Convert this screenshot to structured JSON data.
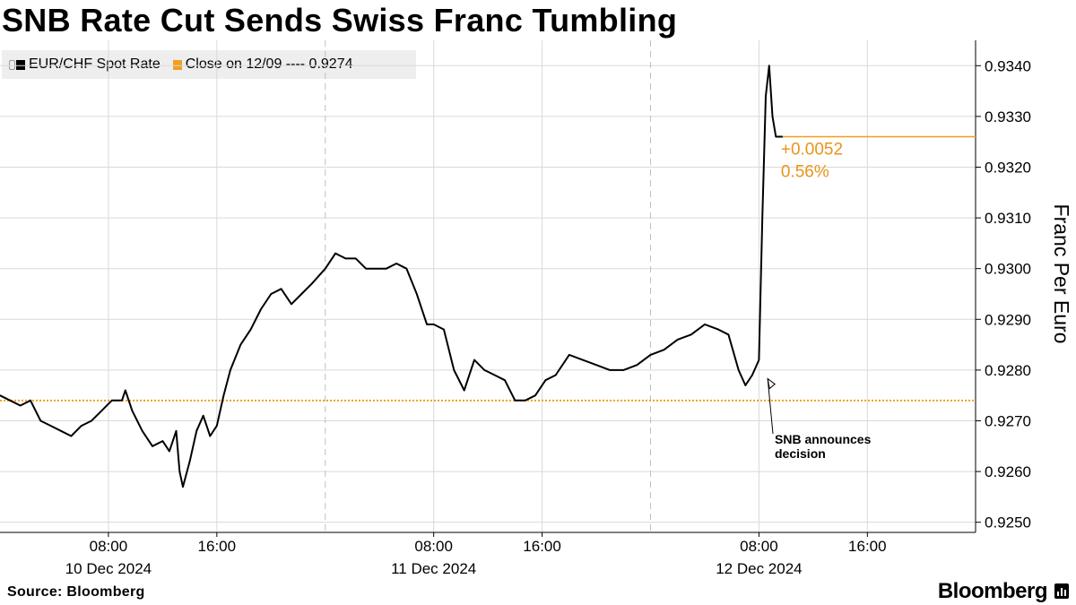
{
  "title": "SNB Rate Cut Sends Swiss Franc Tumbling",
  "legend": {
    "spot_label": "EUR/CHF Spot Rate",
    "close_label": "Close on 12/09 ---- 0.9274"
  },
  "footer": {
    "source": "Source: Bloomberg",
    "brand": "Bloomberg"
  },
  "colors": {
    "line": "#000000",
    "close": "#f0a01e",
    "grid": "#d9d9d9",
    "annotation": "#e8941a"
  },
  "chart_data": {
    "type": "line",
    "title": "SNB Rate Cut Sends Swiss Franc Tumbling",
    "ylabel": "Franc Per Euro",
    "ylim": [
      0.9248,
      0.9345
    ],
    "yticks": [
      "0.9250",
      "0.9260",
      "0.9270",
      "0.9280",
      "0.9290",
      "0.9300",
      "0.9310",
      "0.9320",
      "0.9330",
      "0.9340"
    ],
    "y_axis_position": "right",
    "grid": true,
    "legend_position": "top-left",
    "xlim": [
      "2024-12-10T00:00",
      "2024-12-12T23:59"
    ],
    "xticks": [
      {
        "x": "2024-12-10T08:00",
        "time": "08:00",
        "date": "10 Dec 2024"
      },
      {
        "x": "2024-12-10T16:00",
        "time": "16:00",
        "date": ""
      },
      {
        "x": "2024-12-11T08:00",
        "time": "08:00",
        "date": "11 Dec 2024"
      },
      {
        "x": "2024-12-11T16:00",
        "time": "16:00",
        "date": ""
      },
      {
        "x": "2024-12-12T08:00",
        "time": "08:00",
        "date": "12 Dec 2024"
      },
      {
        "x": "2024-12-12T16:00",
        "time": "16:00",
        "date": ""
      }
    ],
    "day_dividers": [
      "2024-12-11T00:00",
      "2024-12-12T00:00"
    ],
    "series": [
      {
        "name": "EUR/CHF Spot Rate",
        "x": [
          "2024-12-10T00:00",
          "2024-12-10T00:45",
          "2024-12-10T01:30",
          "2024-12-10T02:15",
          "2024-12-10T03:00",
          "2024-12-10T03:45",
          "2024-12-10T04:30",
          "2024-12-10T05:15",
          "2024-12-10T06:00",
          "2024-12-10T06:45",
          "2024-12-10T07:30",
          "2024-12-10T08:15",
          "2024-12-10T09:00",
          "2024-12-10T09:15",
          "2024-12-10T09:45",
          "2024-12-10T10:30",
          "2024-12-10T11:15",
          "2024-12-10T12:00",
          "2024-12-10T12:30",
          "2024-12-10T13:00",
          "2024-12-10T13:15",
          "2024-12-10T13:30",
          "2024-12-10T14:00",
          "2024-12-10T14:30",
          "2024-12-10T15:00",
          "2024-12-10T15:30",
          "2024-12-10T16:00",
          "2024-12-10T16:30",
          "2024-12-10T17:00",
          "2024-12-10T17:45",
          "2024-12-10T18:30",
          "2024-12-10T19:15",
          "2024-12-10T20:00",
          "2024-12-10T20:45",
          "2024-12-10T21:30",
          "2024-12-10T22:15",
          "2024-12-10T23:00",
          "2024-12-11T00:00",
          "2024-12-11T00:45",
          "2024-12-11T01:30",
          "2024-12-11T02:15",
          "2024-12-11T03:00",
          "2024-12-11T03:45",
          "2024-12-11T04:30",
          "2024-12-11T05:15",
          "2024-12-11T06:00",
          "2024-12-11T06:45",
          "2024-12-11T07:30",
          "2024-12-11T08:00",
          "2024-12-11T08:45",
          "2024-12-11T09:30",
          "2024-12-11T10:15",
          "2024-12-11T11:00",
          "2024-12-11T11:45",
          "2024-12-11T12:30",
          "2024-12-11T13:15",
          "2024-12-11T14:00",
          "2024-12-11T14:45",
          "2024-12-11T15:30",
          "2024-12-11T16:15",
          "2024-12-11T17:00",
          "2024-12-11T18:00",
          "2024-12-11T19:00",
          "2024-12-11T20:00",
          "2024-12-11T21:00",
          "2024-12-11T22:00",
          "2024-12-11T23:00",
          "2024-12-12T00:00",
          "2024-12-12T01:00",
          "2024-12-12T02:00",
          "2024-12-12T03:00",
          "2024-12-12T04:00",
          "2024-12-12T05:00",
          "2024-12-12T05:45",
          "2024-12-12T06:30",
          "2024-12-12T07:00",
          "2024-12-12T07:30",
          "2024-12-12T08:00",
          "2024-12-12T08:15",
          "2024-12-12T08:30",
          "2024-12-12T08:45",
          "2024-12-12T09:00",
          "2024-12-12T09:15",
          "2024-12-12T09:30",
          "2024-12-12T09:45"
        ],
        "values": [
          0.9275,
          0.9274,
          0.9273,
          0.9274,
          0.927,
          0.9269,
          0.9268,
          0.9267,
          0.9269,
          0.927,
          0.9272,
          0.9274,
          0.9274,
          0.9276,
          0.9272,
          0.9268,
          0.9265,
          0.9266,
          0.9264,
          0.9268,
          0.926,
          0.9257,
          0.9262,
          0.9268,
          0.9271,
          0.9267,
          0.9269,
          0.9275,
          0.928,
          0.9285,
          0.9288,
          0.9292,
          0.9295,
          0.9296,
          0.9293,
          0.9295,
          0.9297,
          0.93,
          0.9303,
          0.9302,
          0.9302,
          0.93,
          0.93,
          0.93,
          0.9301,
          0.93,
          0.9295,
          0.9289,
          0.9289,
          0.9288,
          0.928,
          0.9276,
          0.9282,
          0.928,
          0.9279,
          0.9278,
          0.9274,
          0.9274,
          0.9275,
          0.9278,
          0.9279,
          0.9283,
          0.9282,
          0.9281,
          0.928,
          0.928,
          0.9281,
          0.9283,
          0.9284,
          0.9286,
          0.9287,
          0.9289,
          0.9288,
          0.9287,
          0.928,
          0.9277,
          0.9279,
          0.9282,
          0.931,
          0.9334,
          0.934,
          0.933,
          0.9326,
          0.9326,
          0.9326
        ]
      },
      {
        "name": "Close on 12/09",
        "value": 0.9274
      }
    ],
    "close_reference_line": {
      "from": "2024-12-12T09:45",
      "value": 0.9326
    },
    "annotations": {
      "change": "+0.0052",
      "change_pct": "0.56%",
      "event": "SNB announces decision"
    }
  }
}
